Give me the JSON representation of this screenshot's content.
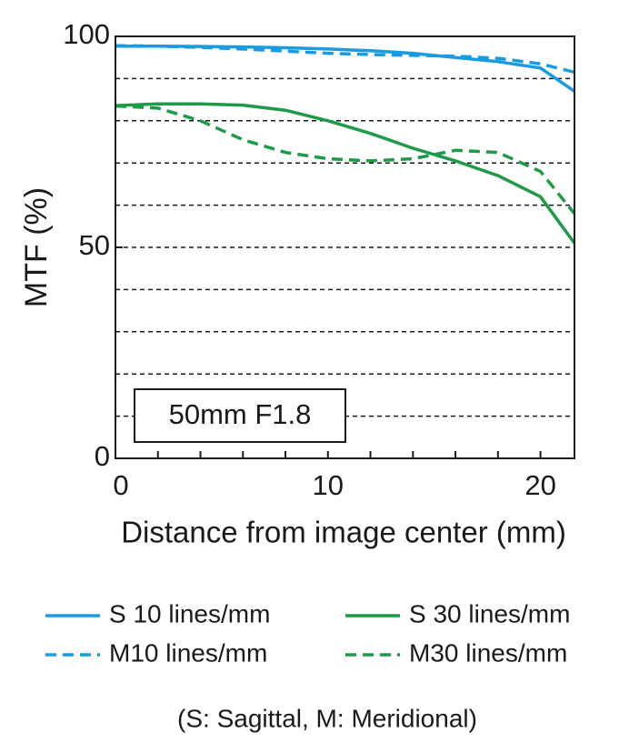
{
  "chart_data": {
    "type": "line",
    "ylabel": "MTF (%)",
    "xlabel": "Distance from image center (mm)",
    "annotation": "50mm F1.8",
    "footnote": "(S: Sagittal, M: Meridional)",
    "x": [
      0,
      2,
      4,
      6,
      8,
      10,
      12,
      14,
      16,
      18,
      20,
      21.6
    ],
    "xlim": [
      0,
      21.6
    ],
    "xticks": [
      0,
      10,
      20
    ],
    "xminorticks": [
      2,
      4,
      6,
      8,
      12,
      14,
      16,
      18
    ],
    "ylim": [
      0,
      100
    ],
    "yticks": [
      0,
      50,
      100
    ],
    "gridlines": [
      10,
      20,
      30,
      40,
      50,
      60,
      70,
      80,
      90
    ],
    "series": [
      {
        "name": "S 10 lines/mm",
        "color": "#1a9be0",
        "linestyle": "solid",
        "values": [
          97.7,
          97.7,
          97.6,
          97.5,
          97.3,
          97,
          96.6,
          96,
          95,
          94,
          92.5,
          87
        ]
      },
      {
        "name": "S 30 lines/mm",
        "color": "#1e9a48",
        "linestyle": "solid",
        "values": [
          83.6,
          84,
          84,
          83.7,
          82.5,
          80,
          77,
          73.5,
          70.5,
          67,
          62,
          51
        ]
      },
      {
        "name": "M10 lines/mm",
        "color": "#1a9be0",
        "linestyle": "dashed",
        "values": [
          97.8,
          97.7,
          97.4,
          97,
          96.5,
          96,
          95.7,
          95.5,
          95.3,
          94.8,
          93.5,
          91.5
        ]
      },
      {
        "name": "M30 lines/mm",
        "color": "#1e9a48",
        "linestyle": "dashed",
        "values": [
          83.5,
          83,
          80,
          75.5,
          72.5,
          71,
          70.5,
          71,
          73,
          72.5,
          68,
          58
        ]
      }
    ]
  }
}
